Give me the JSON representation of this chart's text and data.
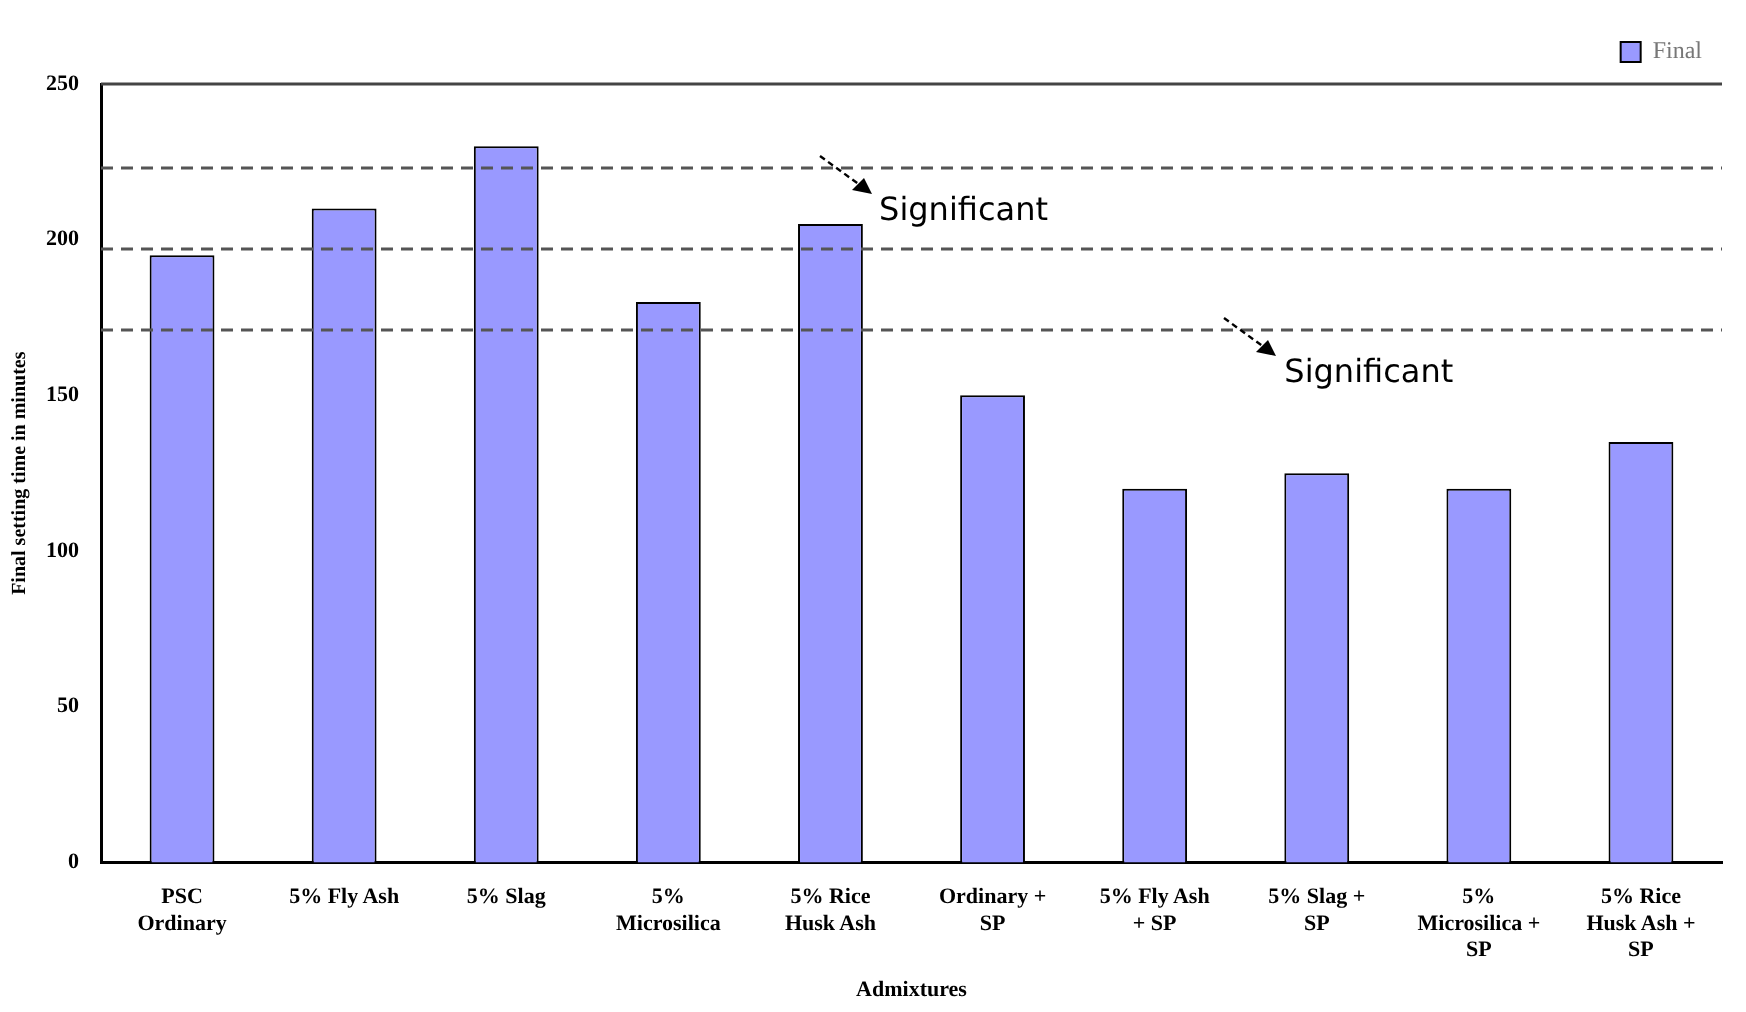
{
  "chart_data": {
    "type": "bar",
    "xlabel": "Admixtures",
    "ylabel": "Final setting time in minutes",
    "categories": [
      "PSC\nOrdinary",
      "5% Fly Ash",
      "5% Slag",
      "5%\nMicrosilica",
      "5% Rice\nHusk Ash",
      "Ordinary +\nSP",
      "5% Fly Ash\n+ SP",
      "5% Slag +\nSP",
      "5%\nMicrosilica +\nSP",
      "5% Rice\nHusk Ash +\nSP"
    ],
    "series": [
      {
        "name": "Final",
        "color": "#9999ff",
        "values": [
          195,
          210,
          230,
          180,
          205,
          150,
          120,
          125,
          120,
          135
        ]
      }
    ],
    "ylim": [
      0,
      250
    ],
    "yticks": [
      0,
      50,
      100,
      150,
      200,
      250
    ],
    "ref_lines": [
      {
        "axis": "y",
        "value": 223,
        "color": "#555555",
        "line_style": "dashed"
      },
      {
        "axis": "y",
        "value": 197,
        "color": "#555555",
        "line_style": "dashed"
      },
      {
        "axis": "y",
        "value": 171,
        "color": "#555555",
        "line_style": "dashed"
      }
    ],
    "annotations": [
      "Significant",
      "Significant"
    ],
    "legend": "top right",
    "grid": false
  }
}
